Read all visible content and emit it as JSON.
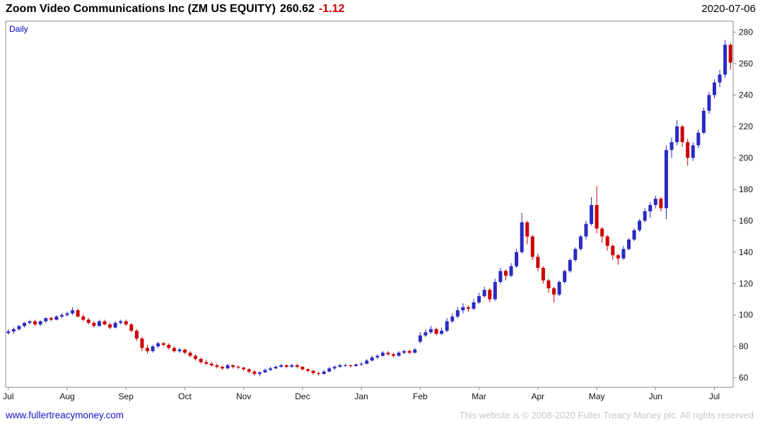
{
  "header": {
    "title": "Zoom Video Communications Inc (ZM US EQUITY)",
    "price": "260.62",
    "change": "-1.12",
    "date": "2020-07-06"
  },
  "chart": {
    "interval_label": "Daily"
  },
  "footer": {
    "link": "www.fullertreacymoney.com",
    "copyright": "This website is © 2008-2020 Fuller Treacy Money plc. All rights reserved"
  },
  "colors": {
    "up_candle": "#2a2ac2",
    "down_candle": "#cc0000",
    "change_negative": "#cc0000",
    "interval_label": "#0000bb",
    "link": "#1414cc",
    "copyright": "#c6c6c6",
    "frame": "#8a8a8a",
    "axis_text": "#111111"
  },
  "chart_data": {
    "type": "candlestick",
    "title": "Zoom Video Communications Inc (ZM US EQUITY)",
    "interval": "Daily",
    "last_price": 260.62,
    "change": -1.12,
    "as_of_date": "2020-07-06",
    "grid": false,
    "legend": "none",
    "ylim": [
      54,
      287
    ],
    "y_ticks": [
      60,
      80,
      100,
      120,
      140,
      160,
      180,
      200,
      220,
      240,
      260,
      280
    ],
    "x_ticks": [
      {
        "label": "Jul",
        "i": 0
      },
      {
        "label": "Aug",
        "i": 11
      },
      {
        "label": "Sep",
        "i": 22
      },
      {
        "label": "Oct",
        "i": 33
      },
      {
        "label": "Nov",
        "i": 44
      },
      {
        "label": "Dec",
        "i": 55
      },
      {
        "label": "Jan",
        "i": 66
      },
      {
        "label": "Feb",
        "i": 77
      },
      {
        "label": "Mar",
        "i": 88
      },
      {
        "label": "Apr",
        "i": 99
      },
      {
        "label": "May",
        "i": 110
      },
      {
        "label": "Jun",
        "i": 121
      },
      {
        "label": "Jul",
        "i": 132
      }
    ],
    "candles": [
      [
        88.5,
        91,
        87.5,
        89.5
      ],
      [
        89.5,
        92,
        88,
        91
      ],
      [
        91,
        93.5,
        90,
        93
      ],
      [
        93,
        95.5,
        92,
        95
      ],
      [
        95,
        97,
        94,
        96
      ],
      [
        96,
        97,
        93,
        94
      ],
      [
        94,
        96.5,
        93,
        96
      ],
      [
        96,
        98.5,
        95,
        98
      ],
      [
        98,
        99,
        96,
        97
      ],
      [
        97,
        100,
        96.5,
        99
      ],
      [
        99,
        101,
        98,
        100
      ],
      [
        100,
        102,
        99,
        101
      ],
      [
        101,
        105,
        100,
        103
      ],
      [
        103,
        104,
        98.5,
        99
      ],
      [
        99,
        100.5,
        96,
        97
      ],
      [
        97,
        98,
        94,
        95
      ],
      [
        95,
        96,
        92,
        93
      ],
      [
        93,
        97,
        92.5,
        96
      ],
      [
        96,
        97,
        93.5,
        94
      ],
      [
        94,
        95,
        91,
        92
      ],
      [
        92,
        96,
        91.5,
        95
      ],
      [
        95,
        97,
        94,
        96
      ],
      [
        96,
        97,
        93,
        94
      ],
      [
        94,
        95,
        89,
        90
      ],
      [
        90,
        91,
        83.5,
        85
      ],
      [
        85,
        86,
        77,
        79
      ],
      [
        79,
        81,
        75.5,
        77
      ],
      [
        77,
        81,
        76,
        80
      ],
      [
        80,
        83,
        79,
        82
      ],
      [
        82,
        83,
        80,
        81
      ],
      [
        81,
        82,
        78,
        79
      ],
      [
        79,
        80,
        76,
        77
      ],
      [
        77,
        79,
        76,
        78
      ],
      [
        78,
        78.5,
        75,
        76
      ],
      [
        76,
        77,
        73,
        74
      ],
      [
        74,
        75,
        71,
        72
      ],
      [
        72,
        73,
        69,
        70
      ],
      [
        70,
        71.5,
        68,
        69
      ],
      [
        69,
        70,
        67,
        68
      ],
      [
        68,
        69,
        66,
        67
      ],
      [
        67,
        68,
        65,
        66
      ],
      [
        66,
        69,
        65.5,
        68
      ],
      [
        68,
        68.5,
        66,
        67
      ],
      [
        67,
        68,
        65.5,
        66.5
      ],
      [
        66.5,
        67,
        64.5,
        65.5
      ],
      [
        65.5,
        66,
        63,
        64
      ],
      [
        64,
        65,
        61.5,
        62.5
      ],
      [
        62.5,
        64,
        61,
        63.5
      ],
      [
        63.5,
        66,
        63,
        65
      ],
      [
        65,
        67,
        64.5,
        66
      ],
      [
        66,
        68,
        65.5,
        67
      ],
      [
        67,
        69,
        66.5,
        68
      ],
      [
        68,
        68.5,
        66,
        67
      ],
      [
        67,
        69,
        66.5,
        68
      ],
      [
        68,
        69,
        66,
        67
      ],
      [
        67,
        67.5,
        64.5,
        65.5
      ],
      [
        65.5,
        66,
        63.5,
        64.5
      ],
      [
        64.5,
        65,
        62,
        63
      ],
      [
        63,
        64,
        61.5,
        62.5
      ],
      [
        62.5,
        65,
        62,
        64
      ],
      [
        64,
        67,
        63.5,
        66
      ],
      [
        66,
        68,
        65,
        67
      ],
      [
        67,
        69,
        66.5,
        68
      ],
      [
        68,
        69,
        67,
        68
      ],
      [
        68,
        68.5,
        66.5,
        67.5
      ],
      [
        67.5,
        69,
        67,
        68.5
      ],
      [
        68.5,
        70,
        67.5,
        69
      ],
      [
        69,
        72,
        68.5,
        71
      ],
      [
        71,
        74,
        70.5,
        73
      ],
      [
        73,
        75,
        72,
        74
      ],
      [
        74,
        77,
        73.5,
        76
      ],
      [
        76,
        77,
        74,
        75
      ],
      [
        75,
        76,
        73,
        74
      ],
      [
        74,
        77,
        73.5,
        76
      ],
      [
        76,
        78,
        75,
        77
      ],
      [
        77,
        78,
        75,
        76
      ],
      [
        76,
        79,
        75.5,
        78
      ],
      [
        83,
        89,
        82,
        87
      ],
      [
        87,
        91,
        86,
        89
      ],
      [
        89,
        93,
        88,
        91
      ],
      [
        91,
        92,
        87,
        88
      ],
      [
        88,
        92,
        87.5,
        90
      ],
      [
        90,
        98,
        89,
        96
      ],
      [
        96,
        101,
        95,
        99
      ],
      [
        99,
        105,
        98,
        103
      ],
      [
        103,
        107.5,
        101,
        105
      ],
      [
        105,
        106,
        102,
        104
      ],
      [
        104,
        110,
        103,
        108
      ],
      [
        108,
        114,
        107,
        112
      ],
      [
        112,
        118,
        111,
        116
      ],
      [
        116,
        117,
        108,
        110
      ],
      [
        110,
        123,
        109,
        121
      ],
      [
        121,
        130,
        120,
        128
      ],
      [
        128,
        129,
        122,
        125
      ],
      [
        125,
        133,
        124,
        131
      ],
      [
        131,
        142,
        130,
        140
      ],
      [
        140,
        165,
        139,
        159
      ],
      [
        159,
        160,
        145,
        150
      ],
      [
        150,
        151,
        135,
        137
      ],
      [
        137,
        139,
        128,
        130
      ],
      [
        130,
        131,
        120,
        122
      ],
      [
        122,
        123,
        114,
        117
      ],
      [
        117,
        118,
        108,
        113
      ],
      [
        113,
        122,
        112,
        121
      ],
      [
        121,
        129,
        120,
        128
      ],
      [
        128,
        136,
        127,
        135
      ],
      [
        135,
        143,
        134,
        142
      ],
      [
        142,
        151,
        141,
        150
      ],
      [
        150,
        160,
        148,
        158
      ],
      [
        158,
        175,
        157,
        170
      ],
      [
        170,
        182,
        152,
        155
      ],
      [
        155,
        156,
        146,
        150
      ],
      [
        150,
        151,
        141,
        144
      ],
      [
        144,
        145,
        135,
        138
      ],
      [
        138,
        139,
        132,
        136
      ],
      [
        136,
        144,
        135,
        142
      ],
      [
        142,
        149,
        141,
        148
      ],
      [
        148,
        155,
        147,
        154
      ],
      [
        154,
        161,
        153,
        160
      ],
      [
        160,
        168,
        159,
        166
      ],
      [
        166,
        172,
        162,
        170
      ],
      [
        170,
        176,
        168,
        174
      ],
      [
        174,
        175,
        166,
        168
      ],
      [
        168,
        208,
        161,
        205
      ],
      [
        205,
        213,
        200,
        210
      ],
      [
        210,
        224,
        208,
        220
      ],
      [
        220,
        221,
        207,
        210
      ],
      [
        210,
        212,
        195,
        200
      ],
      [
        200,
        210,
        198,
        208
      ],
      [
        208,
        218,
        206,
        216
      ],
      [
        216,
        232,
        215,
        230
      ],
      [
        230,
        242,
        228,
        240
      ],
      [
        240,
        250,
        238,
        248
      ],
      [
        248,
        256,
        245,
        253
      ],
      [
        253,
        275,
        251,
        272
      ],
      [
        272,
        273,
        256,
        260.62
      ]
    ]
  }
}
